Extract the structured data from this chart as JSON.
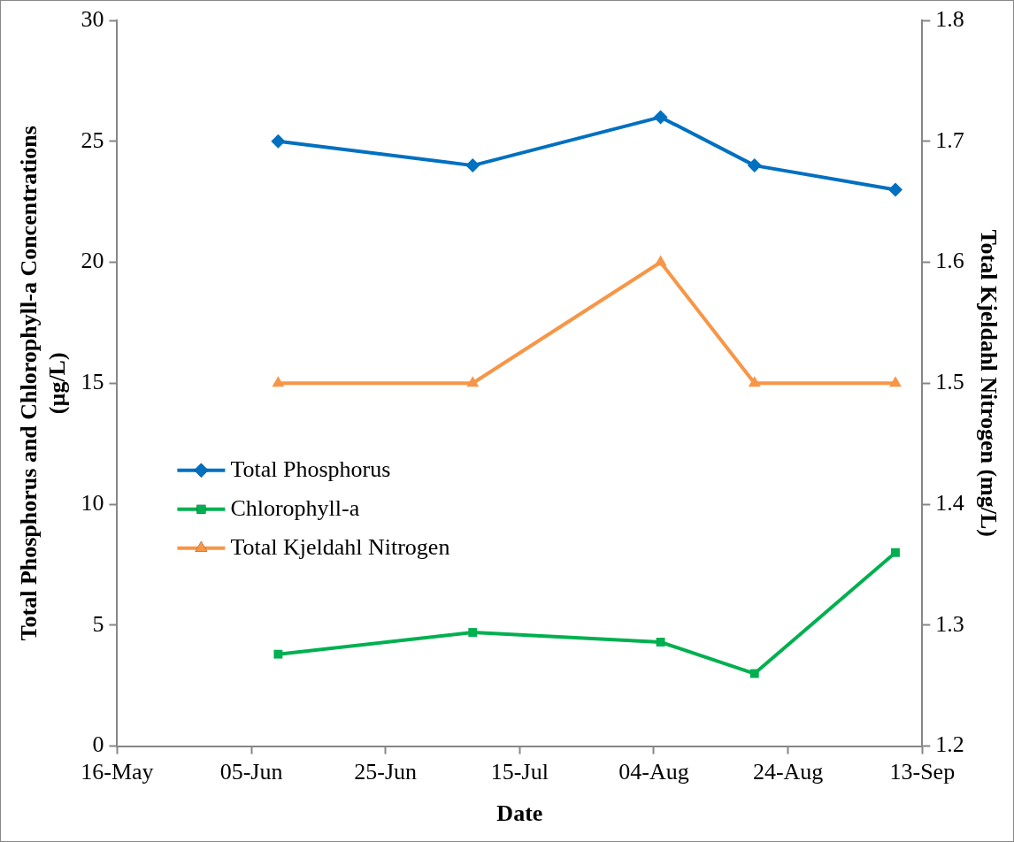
{
  "chart_data": {
    "type": "line",
    "xlabel": "Date",
    "ylabel": "Total Phosphorus and Chlorophyll-a Concentrations (µg/L)",
    "y2label": "Total Kjeldahl Nitrogen (mg/L)",
    "x": [
      "--06-09",
      "--07-08",
      "--08-05",
      "--08-19",
      "--09-09"
    ],
    "xlim": [
      "--05-16",
      "--09-13"
    ],
    "xticks": [
      {
        "value": "--05-16",
        "label": "16-May"
      },
      {
        "value": "--06-05",
        "label": "05-Jun"
      },
      {
        "value": "--06-25",
        "label": "25-Jun"
      },
      {
        "value": "--07-15",
        "label": "15-Jul"
      },
      {
        "value": "--08-04",
        "label": "04-Aug"
      },
      {
        "value": "--08-24",
        "label": "24-Aug"
      },
      {
        "value": "--09-13",
        "label": "13-Sep"
      }
    ],
    "ylim": [
      0,
      30
    ],
    "yticks": [
      0,
      5,
      10,
      15,
      20,
      25,
      30
    ],
    "y2lim": [
      1.2,
      1.8
    ],
    "y2ticks": [
      {
        "value": 1.2,
        "label": "1.2"
      },
      {
        "value": 1.3,
        "label": "1.3"
      },
      {
        "value": 1.4,
        "label": "1.4"
      },
      {
        "value": 1.5,
        "label": "1.5"
      },
      {
        "value": 1.6,
        "label": "1.6"
      },
      {
        "value": 1.7,
        "label": "1.7"
      },
      {
        "value": 1.8,
        "label": "1.8"
      }
    ],
    "series": [
      {
        "name": "Total Phosphorus",
        "color": "#0070c0",
        "marker": "diamond",
        "values": [
          25,
          24,
          26,
          24,
          23
        ]
      },
      {
        "name": "Chlorophyll-a",
        "color": "#00b050",
        "marker": "square",
        "values": [
          3.8,
          4.7,
          4.3,
          3.0,
          8.0
        ]
      },
      {
        "name": "Total Kjeldahl Nitrogen",
        "color": "#f79646",
        "marker": "triangle",
        "axis": "y2",
        "values": [
          1.5,
          1.5,
          1.6,
          1.5,
          1.5
        ]
      }
    ],
    "grid": false,
    "legend": "left",
    "line_style": "solid"
  }
}
